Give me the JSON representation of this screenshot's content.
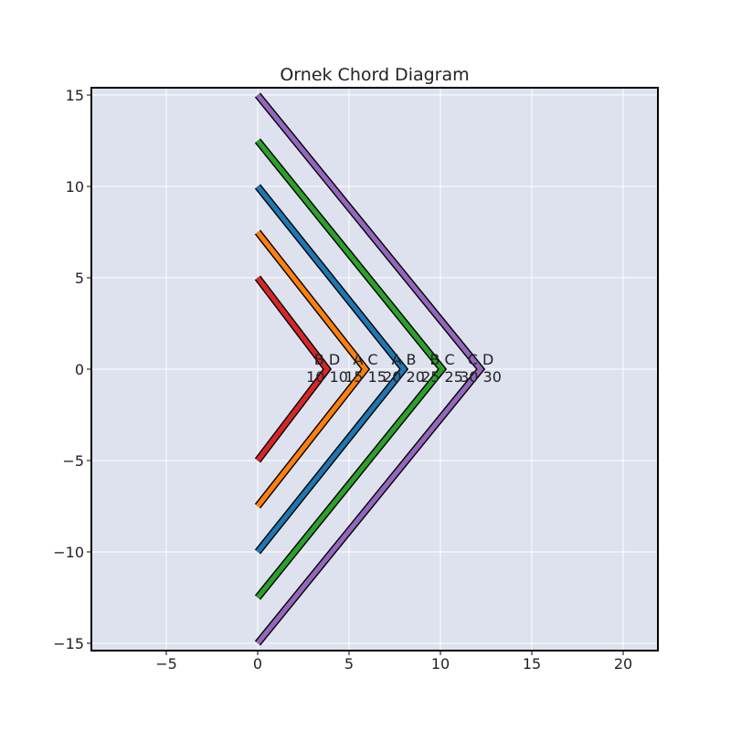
{
  "chart_data": {
    "type": "line",
    "title": "Ornek Chord Diagram",
    "xlabel": "",
    "ylabel": "",
    "xlim": [
      -9.1,
      21.9
    ],
    "ylim": [
      -15.4,
      15.4
    ],
    "x_ticks": [
      -5,
      0,
      5,
      10,
      15,
      20
    ],
    "y_ticks": [
      -15,
      -10,
      -5,
      0,
      5,
      10,
      15
    ],
    "x_tick_labels": [
      "−5",
      "0",
      "5",
      "10",
      "15",
      "20"
    ],
    "y_tick_labels": [
      "−15",
      "−10",
      "−5",
      "0",
      "5",
      "10",
      "15"
    ],
    "grid": true,
    "colors": {
      "background": "#dde2ee",
      "grid": "#ffffff",
      "outline": "#000000"
    },
    "series": [
      {
        "color": "#d62728",
        "points": [
          [
            0,
            5
          ],
          [
            3.8,
            0
          ],
          [
            0,
            -5
          ]
        ],
        "chord_labels": [
          "B D",
          "10 10"
        ]
      },
      {
        "color": "#ff7f0e",
        "points": [
          [
            0,
            7.5
          ],
          [
            5.9,
            0
          ],
          [
            0,
            -7.5
          ]
        ],
        "chord_labels": [
          "A C",
          "15 15"
        ]
      },
      {
        "color": "#1f77b4",
        "points": [
          [
            0,
            10
          ],
          [
            8.0,
            0
          ],
          [
            0,
            -10
          ]
        ],
        "chord_labels": [
          "A B",
          "20 20"
        ]
      },
      {
        "color": "#2ca02c",
        "points": [
          [
            0,
            12.5
          ],
          [
            10.1,
            0
          ],
          [
            0,
            -12.5
          ]
        ],
        "chord_labels": [
          "B C",
          "25 25"
        ]
      },
      {
        "color": "#9467bd",
        "points": [
          [
            0,
            15
          ],
          [
            12.2,
            0
          ],
          [
            0,
            -15
          ]
        ],
        "chord_labels": [
          "C D",
          "30 30"
        ]
      }
    ]
  }
}
